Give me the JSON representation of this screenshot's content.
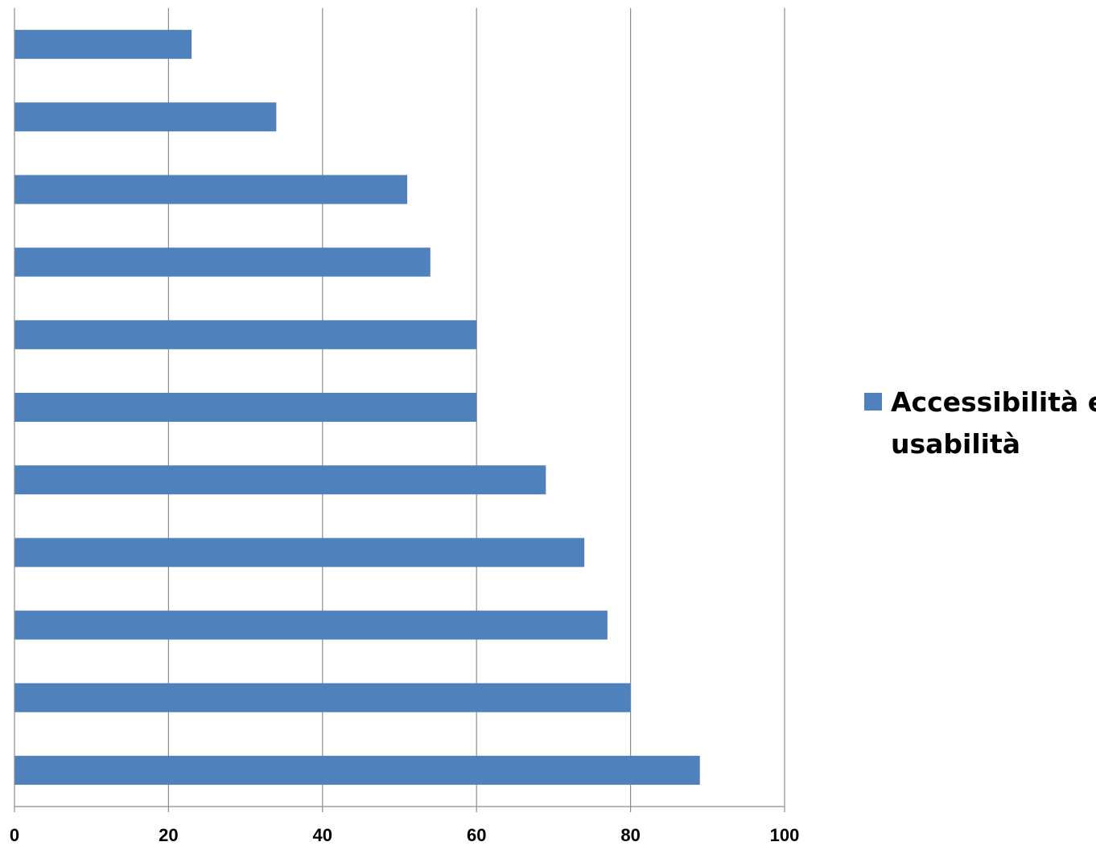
{
  "chart_data": {
    "type": "bar",
    "orientation": "horizontal",
    "categories": [
      "",
      "",
      "",
      "",
      "",
      "",
      "",
      "",
      "",
      "",
      ""
    ],
    "series": [
      {
        "name": "Accessibilità e usabilità",
        "color": "#4f81bd",
        "values": [
          89,
          80,
          77,
          74,
          69,
          60,
          60,
          54,
          51,
          34,
          23
        ]
      }
    ],
    "xlim": [
      0,
      100
    ],
    "x_ticks": [
      0,
      20,
      40,
      60,
      80,
      100
    ],
    "x_tick_labels": [
      "0",
      "20",
      "40",
      "60",
      "80",
      "100"
    ],
    "grid": "vertical",
    "legend": {
      "position": "right",
      "lines": [
        "Accessibilità e",
        "usabilità"
      ]
    },
    "title": "",
    "xlabel": "",
    "ylabel": ""
  }
}
